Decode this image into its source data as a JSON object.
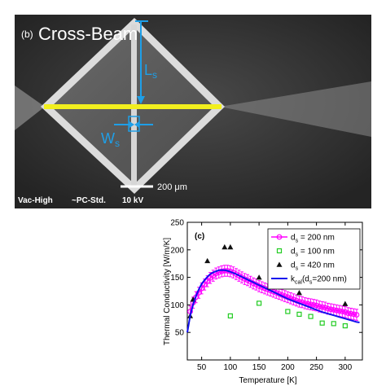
{
  "sem": {
    "panel_label": "(b)",
    "title": "Cross-Beam",
    "length_label": "L",
    "length_sub": "s",
    "width_label": "W",
    "width_sub": "s",
    "scale_bar_label": "200 μm",
    "footer_vac": "Vac-High",
    "footer_pc": "~PC-Std.",
    "footer_kv": "10 kV",
    "colors": {
      "annotation": "#1e9fe8",
      "beam": "#f2ef1e",
      "background": "#2e2e2e"
    }
  },
  "chart_data": {
    "type": "scatter",
    "panel_label": "(c)",
    "xlabel": "Temperature [K]",
    "ylabel": "Thermal Conductivity [W/m/K]",
    "xlim": [
      25,
      330
    ],
    "ylim": [
      0,
      250
    ],
    "xticks": [
      50,
      100,
      150,
      200,
      250,
      300
    ],
    "yticks": [
      50,
      100,
      150,
      200,
      250
    ],
    "legend_position": "top-right",
    "series": [
      {
        "name": "d",
        "name_sub": "s",
        "name_rest": " = 200 nm",
        "marker": "circle",
        "color": "#ff00ff",
        "line": true,
        "error_bar": 10,
        "x": [
          30,
          35,
          40,
          45,
          50,
          55,
          60,
          65,
          70,
          75,
          80,
          85,
          90,
          95,
          100,
          105,
          110,
          115,
          120,
          125,
          130,
          135,
          140,
          145,
          150,
          155,
          160,
          165,
          170,
          175,
          180,
          185,
          190,
          195,
          200,
          205,
          210,
          215,
          220,
          225,
          230,
          235,
          240,
          245,
          250,
          255,
          260,
          265,
          270,
          275,
          280,
          285,
          290,
          295,
          300,
          305,
          310,
          315,
          320
        ],
        "y": [
          88,
          104,
          114,
          122,
          130,
          137,
          143,
          149,
          153,
          157,
          159,
          161,
          162,
          162,
          161,
          159,
          156,
          153,
          150,
          147,
          145,
          142,
          139,
          137,
          134,
          132,
          130,
          128,
          126,
          124,
          122,
          120,
          118,
          116,
          114,
          112,
          110,
          108,
          106,
          105,
          103,
          102,
          101,
          100,
          99,
          97,
          96,
          95,
          93,
          92,
          91,
          90,
          89,
          88,
          87,
          85,
          84,
          83,
          82
        ]
      },
      {
        "name": "d",
        "name_sub": "s",
        "name_rest": " = 100 nm",
        "marker": "square",
        "color": "#22cc22",
        "line": false,
        "x": [
          100,
          150,
          200,
          220,
          240,
          260,
          280,
          300
        ],
        "y": [
          80,
          103,
          88,
          83,
          79,
          67,
          66,
          62
        ]
      },
      {
        "name": "d",
        "name_sub": "s",
        "name_rest": " = 420 nm",
        "marker": "triangle",
        "color": "#111111",
        "line": false,
        "x": [
          30,
          35,
          60,
          90,
          100,
          150,
          180,
          220,
          300
        ],
        "y": [
          80,
          110,
          180,
          205,
          205,
          150,
          140,
          122,
          102
        ]
      },
      {
        "name": "k",
        "name_sub": "cal",
        "name_rest": "(d",
        "name_sub2": "s",
        "name_rest2": "=200 nm)",
        "marker": "none",
        "color": "#1010ee",
        "line": true,
        "x": [
          25,
          30,
          35,
          40,
          45,
          50,
          55,
          60,
          65,
          70,
          75,
          80,
          85,
          90,
          95,
          100,
          110,
          120,
          130,
          140,
          150,
          160,
          170,
          180,
          190,
          200,
          210,
          220,
          230,
          240,
          250,
          260,
          270,
          280,
          290,
          300,
          310,
          320,
          325
        ],
        "y": [
          50,
          80,
          100,
          116,
          128,
          138,
          145,
          151,
          156,
          159,
          161,
          163,
          163,
          163,
          162,
          160,
          156,
          151,
          146,
          141,
          136,
          131,
          126,
          121,
          116,
          111,
          107,
          103,
          99,
          95,
          91,
          87,
          84,
          81,
          78,
          75,
          72,
          69,
          68
        ]
      }
    ]
  }
}
